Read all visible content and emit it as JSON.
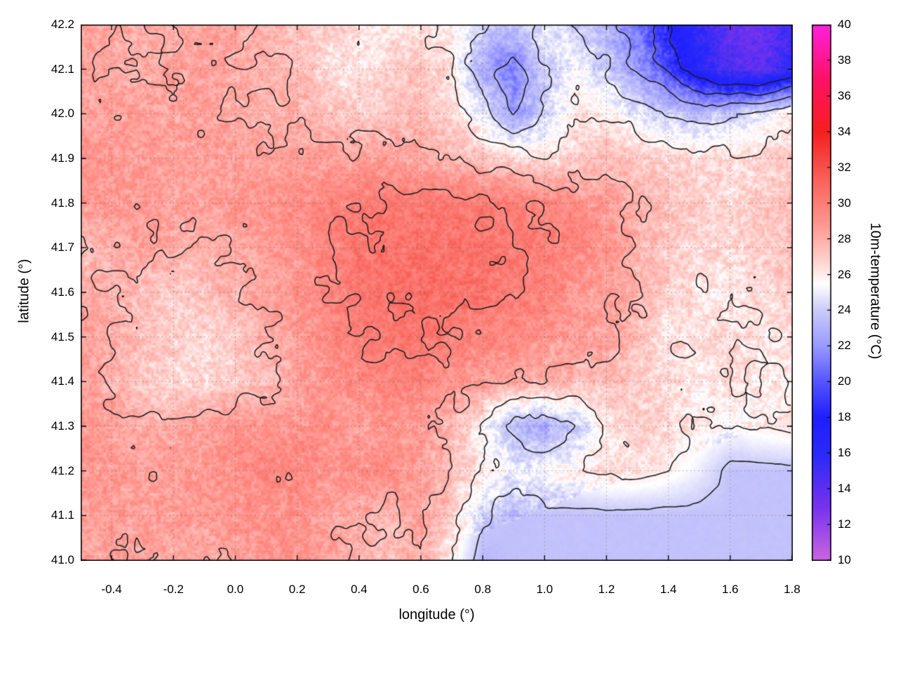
{
  "axes": {
    "xlabel": "longitude (°)",
    "ylabel": "latitude (°)",
    "cblabel": "10m-temperature (°C)",
    "x_ticks": [
      "-0.4",
      "-0.2",
      "0.0",
      "0.2",
      "0.4",
      "0.6",
      "0.8",
      "1.0",
      "1.2",
      "1.4",
      "1.6",
      "1.8"
    ],
    "y_ticks": [
      "41.0",
      "41.1",
      "41.2",
      "41.3",
      "41.4",
      "41.5",
      "41.6",
      "41.7",
      "41.8",
      "41.9",
      "42.0",
      "42.1",
      "42.2"
    ],
    "cb_ticks": [
      "10",
      "12",
      "14",
      "16",
      "18",
      "20",
      "22",
      "24",
      "26",
      "28",
      "30",
      "32",
      "34",
      "36",
      "38",
      "40"
    ]
  },
  "chart_data": {
    "type": "heatmap",
    "title": "",
    "xlabel": "longitude (°)",
    "ylabel": "latitude (°)",
    "colorbar_label": "10m-temperature (°C)",
    "xlim": [
      -0.5,
      1.8
    ],
    "ylim": [
      41.0,
      42.2
    ],
    "clim": [
      10,
      40
    ],
    "grid_on": true,
    "contour_levels": [
      18,
      20,
      22,
      24,
      26,
      28,
      30
    ],
    "contour_color": "#1c1c1c",
    "palette": [
      [
        10,
        "#cc66e0"
      ],
      [
        13,
        "#7733ee"
      ],
      [
        16,
        "#2a2af8"
      ],
      [
        18,
        "#1f1fff"
      ],
      [
        20,
        "#5555ff"
      ],
      [
        22,
        "#9a9aff"
      ],
      [
        24,
        "#ccccfa"
      ],
      [
        25.5,
        "#ffffff"
      ],
      [
        27,
        "#ffccc8"
      ],
      [
        29,
        "#ff938c"
      ],
      [
        31,
        "#f96a62"
      ],
      [
        34,
        "#f52020"
      ],
      [
        37,
        "#ff1166"
      ],
      [
        40,
        "#ff22dd"
      ]
    ],
    "grid": {
      "lon_min": -0.5,
      "lon_max": 1.8,
      "lon_step": 0.1,
      "lat_min": 41.0,
      "lat_max": 42.2,
      "lat_step": 0.1,
      "rows_order": "north_to_south",
      "lon_values": [
        -0.5,
        -0.4,
        -0.3,
        -0.2,
        -0.1,
        0.0,
        0.1,
        0.2,
        0.3,
        0.4,
        0.5,
        0.6,
        0.7,
        0.8,
        0.9,
        1.0,
        1.1,
        1.2,
        1.3,
        1.4,
        1.5,
        1.6,
        1.7,
        1.8
      ],
      "lat_values": [
        42.2,
        42.1,
        42.0,
        41.9,
        41.8,
        41.7,
        41.6,
        41.5,
        41.4,
        41.3,
        41.2,
        41.1,
        41.0
      ],
      "values": [
        [
          28.5,
          28.3,
          28.0,
          28.2,
          28.4,
          28.2,
          27.8,
          27.5,
          27.0,
          26.5,
          26.0,
          26.2,
          26.0,
          24.5,
          23.2,
          25.0,
          24.0,
          23.0,
          21.0,
          18.0,
          15.5,
          14.0,
          13.5,
          15.0
        ],
        [
          28.4,
          28.2,
          28.0,
          28.4,
          28.5,
          28.2,
          28.0,
          27.6,
          26.5,
          26.0,
          26.8,
          27.2,
          26.2,
          22.5,
          21.2,
          24.0,
          25.5,
          24.0,
          22.0,
          19.5,
          16.5,
          14.5,
          14.0,
          16.0
        ],
        [
          28.6,
          28.5,
          28.5,
          28.5,
          28.5,
          28.2,
          27.8,
          28.0,
          27.5,
          27.0,
          27.4,
          27.5,
          26.5,
          25.0,
          22.2,
          24.2,
          26.0,
          26.0,
          25.0,
          24.0,
          23.5,
          24.0,
          25.0,
          26.0
        ],
        [
          29.0,
          28.8,
          28.6,
          28.5,
          28.5,
          28.5,
          28.5,
          28.5,
          28.5,
          28.5,
          28.5,
          28.2,
          27.8,
          27.2,
          26.8,
          26.2,
          27.0,
          27.5,
          27.2,
          26.8,
          26.5,
          26.5,
          26.6,
          27.0
        ],
        [
          29.0,
          28.8,
          28.6,
          28.5,
          28.6,
          28.8,
          29.0,
          29.4,
          29.6,
          30.0,
          30.2,
          30.2,
          30.2,
          30.1,
          29.8,
          29.6,
          29.2,
          28.6,
          28.0,
          27.5,
          27.0,
          26.6,
          27.0,
          27.4
        ],
        [
          27.2,
          28.0,
          28.4,
          28.2,
          28.0,
          28.2,
          28.5,
          29.0,
          29.6,
          30.4,
          30.6,
          30.6,
          30.6,
          30.5,
          30.2,
          30.0,
          29.6,
          29.0,
          28.0,
          27.0,
          26.6,
          26.6,
          27.0,
          27.4
        ],
        [
          28.4,
          28.0,
          27.4,
          27.0,
          27.4,
          28.0,
          28.5,
          29.0,
          29.6,
          30.2,
          30.5,
          30.6,
          30.6,
          30.5,
          30.0,
          29.6,
          29.0,
          28.5,
          28.0,
          27.0,
          26.2,
          26.0,
          26.5,
          27.0
        ],
        [
          28.5,
          28.0,
          27.4,
          27.0,
          26.6,
          27.0,
          28.0,
          28.6,
          29.4,
          30.0,
          30.4,
          30.4,
          30.0,
          29.6,
          29.5,
          29.0,
          28.6,
          28.4,
          27.5,
          26.2,
          26.5,
          26.5,
          26.2,
          26.5
        ],
        [
          28.5,
          28.0,
          27.0,
          26.6,
          26.6,
          27.0,
          27.5,
          28.4,
          29.0,
          29.4,
          29.8,
          29.6,
          29.0,
          28.6,
          28.2,
          28.0,
          27.6,
          27.5,
          27.0,
          26.5,
          26.0,
          26.4,
          26.0,
          26.0
        ],
        [
          29.0,
          28.5,
          28.0,
          28.4,
          28.6,
          28.8,
          29.0,
          29.0,
          29.0,
          28.6,
          29.0,
          28.6,
          27.6,
          25.5,
          23.2,
          22.6,
          24.0,
          26.0,
          27.0,
          26.6,
          26.0,
          25.5,
          26.0,
          26.4
        ],
        [
          29.0,
          28.8,
          28.6,
          28.6,
          28.8,
          29.0,
          29.8,
          29.5,
          29.0,
          29.0,
          29.4,
          28.6,
          27.6,
          26.2,
          25.0,
          25.5,
          26.0,
          26.5,
          26.5,
          26.0,
          25.0,
          23.6,
          23.6,
          23.6
        ],
        [
          28.6,
          28.6,
          28.5,
          28.6,
          28.6,
          29.0,
          29.0,
          29.0,
          28.5,
          28.0,
          27.6,
          28.4,
          27.0,
          24.0,
          23.4,
          23.6,
          23.6,
          23.6,
          23.6,
          23.6,
          23.6,
          23.6,
          23.6,
          23.6
        ],
        [
          28.2,
          28.4,
          28.5,
          28.2,
          28.0,
          28.4,
          29.0,
          29.0,
          28.6,
          28.0,
          27.5,
          28.0,
          26.0,
          23.2,
          23.6,
          23.6,
          23.6,
          23.6,
          23.6,
          23.6,
          23.6,
          23.6,
          23.6,
          23.6
        ]
      ]
    }
  }
}
